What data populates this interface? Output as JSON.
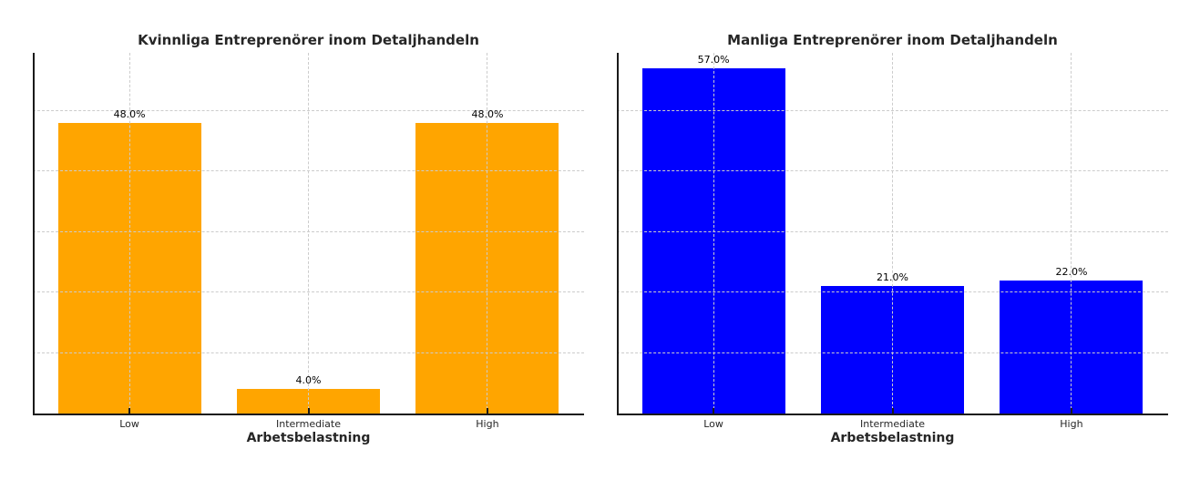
{
  "figure": {
    "background": "#ffffff"
  },
  "style": {
    "grid_color": "#cccccc",
    "spine_color": "#1a1a1a",
    "tick_color": "#1a1a1a",
    "title_color": "#262626",
    "tick_label_color": "#262626",
    "bar_label_color": "#000000"
  },
  "chart_data": [
    {
      "type": "bar",
      "title": "Kvinnliga Entreprenörer inom Detaljhandeln",
      "xlabel": "Arbetsbelastning",
      "ylabel": "",
      "categories": [
        "Low",
        "Intermediate",
        "High"
      ],
      "values": [
        48.0,
        4.0,
        48.0
      ],
      "bar_labels": [
        "48.0%",
        "4.0%",
        "48.0%"
      ],
      "bar_color": "#FFA500",
      "ylim": [
        0,
        59.6
      ],
      "y_gridlines": [
        10,
        20,
        30,
        40,
        50
      ],
      "grid": "dashed, horizontal and vertical, drawn above bars",
      "legend": "none",
      "y_tick_labels": "hidden"
    },
    {
      "type": "bar",
      "title": "Manliga Entreprenörer inom Detaljhandeln",
      "xlabel": "Arbetsbelastning",
      "ylabel": "",
      "categories": [
        "Low",
        "Intermediate",
        "High"
      ],
      "values": [
        57.0,
        21.0,
        22.0
      ],
      "bar_labels": [
        "57.0%",
        "21.0%",
        "22.0%"
      ],
      "bar_color": "#0000FF",
      "ylim": [
        0,
        59.6
      ],
      "y_gridlines": [
        10,
        20,
        30,
        40,
        50
      ],
      "grid": "dashed, horizontal and vertical, drawn above bars",
      "legend": "none",
      "y_tick_labels": "hidden"
    }
  ]
}
